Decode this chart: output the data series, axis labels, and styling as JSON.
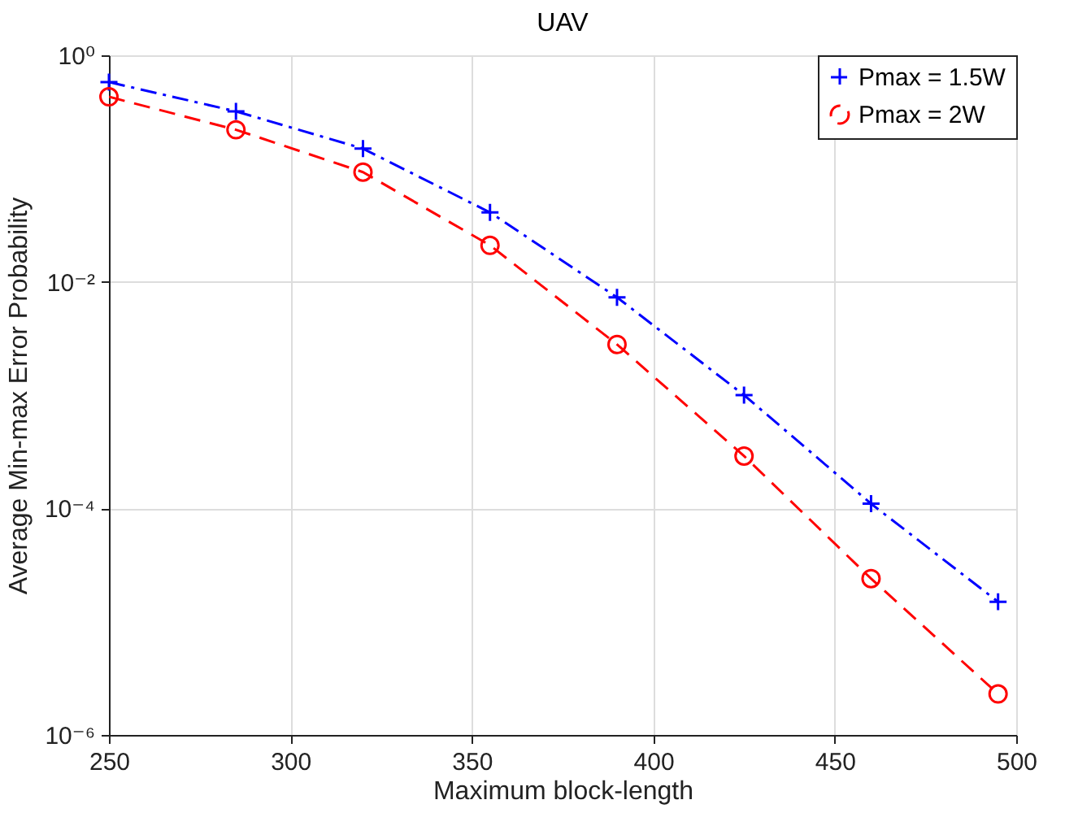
{
  "chart_data": {
    "type": "line",
    "title": "UAV",
    "xlabel": "Maximum block-length",
    "ylabel": "Average Min-max Error Probability",
    "x": [
      250,
      285,
      320,
      355,
      390,
      425,
      460,
      495
    ],
    "series": [
      {
        "name": "Pmax = 1.5W",
        "color": "#0000ff",
        "marker": "cross",
        "line_style": "dashdot",
        "values": [
          0.58,
          0.32,
          0.15,
          0.041,
          0.0073,
          0.001,
          0.00011,
          1.5e-05
        ]
      },
      {
        "name": "Pmax  = 2W",
        "color": "#ff0000",
        "marker": "circle",
        "line_style": "dashed",
        "values": [
          0.43,
          0.22,
          0.093,
          0.021,
          0.0028,
          0.00029,
          2.4e-05,
          2.3e-06
        ]
      }
    ],
    "xlim": [
      250,
      500
    ],
    "xticks": [
      250,
      300,
      350,
      400,
      450,
      500
    ],
    "ylim": [
      1e-06,
      1
    ],
    "yticks": [
      {
        "value": 1,
        "label": "10⁰"
      },
      {
        "value": 0.01,
        "label": "10⁻²"
      },
      {
        "value": 0.0001,
        "label": "10⁻⁴"
      },
      {
        "value": 1e-06,
        "label": "10⁻⁶"
      }
    ],
    "log": "y",
    "grid": true,
    "legend": "top right"
  }
}
